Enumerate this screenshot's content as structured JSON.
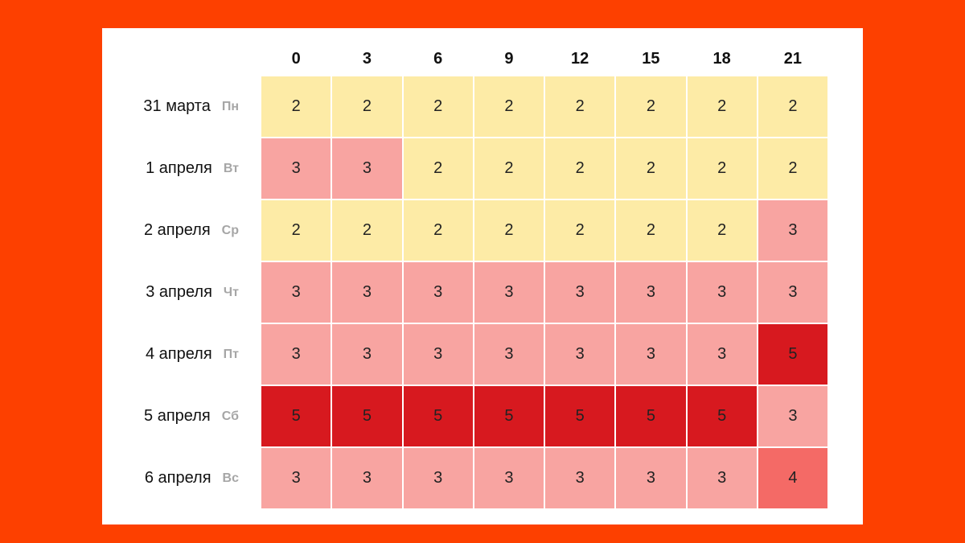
{
  "table": {
    "columns": [
      "0",
      "3",
      "6",
      "9",
      "12",
      "15",
      "18",
      "21"
    ],
    "colors": {
      "2": "#fdeba6",
      "3": "#f8a4a1",
      "4": "#f46a66",
      "5": "#d7191f"
    },
    "rows": [
      {
        "date": "31 марта",
        "day": "Пн",
        "values": [
          2,
          2,
          2,
          2,
          2,
          2,
          2,
          2
        ]
      },
      {
        "date": "1 апреля",
        "day": "Вт",
        "values": [
          3,
          3,
          2,
          2,
          2,
          2,
          2,
          2
        ]
      },
      {
        "date": "2 апреля",
        "day": "Ср",
        "values": [
          2,
          2,
          2,
          2,
          2,
          2,
          2,
          3
        ]
      },
      {
        "date": "3 апреля",
        "day": "Чт",
        "values": [
          3,
          3,
          3,
          3,
          3,
          3,
          3,
          3
        ]
      },
      {
        "date": "4 апреля",
        "day": "Пт",
        "values": [
          3,
          3,
          3,
          3,
          3,
          3,
          3,
          5
        ]
      },
      {
        "date": "5 апреля",
        "day": "Сб",
        "values": [
          5,
          5,
          5,
          5,
          5,
          5,
          5,
          3
        ]
      },
      {
        "date": "6 апреля",
        "day": "Вс",
        "values": [
          3,
          3,
          3,
          3,
          3,
          3,
          3,
          4
        ]
      }
    ]
  }
}
